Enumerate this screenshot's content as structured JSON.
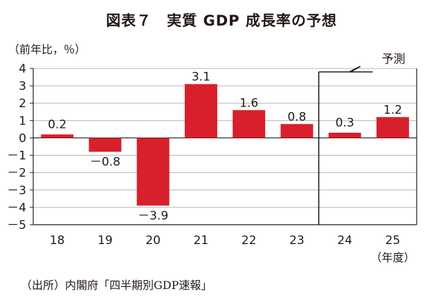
{
  "chart_data": {
    "type": "bar",
    "title": "図表７　実質 GDP 成長率の予想",
    "ylabel": "（前年比，％）",
    "xlabel": "（年度）",
    "categories": [
      "18",
      "19",
      "20",
      "21",
      "22",
      "23",
      "24",
      "25"
    ],
    "values": [
      0.2,
      -0.8,
      -3.9,
      3.1,
      1.6,
      0.8,
      0.3,
      1.2
    ],
    "value_labels": [
      "0.2",
      "－0.8",
      "－3.9",
      "3.1",
      "1.6",
      "0.8",
      "0.3",
      "1.2"
    ],
    "y_ticks": [
      "4",
      "3",
      "2",
      "1",
      "0",
      "－1",
      "－2",
      "－3",
      "－4",
      "－5"
    ],
    "ylim": [
      -5,
      4
    ],
    "forecast_label": "予測",
    "bar_color": "#d7202c",
    "source": "（出所）内閣府「四半期別GDP速報」"
  }
}
